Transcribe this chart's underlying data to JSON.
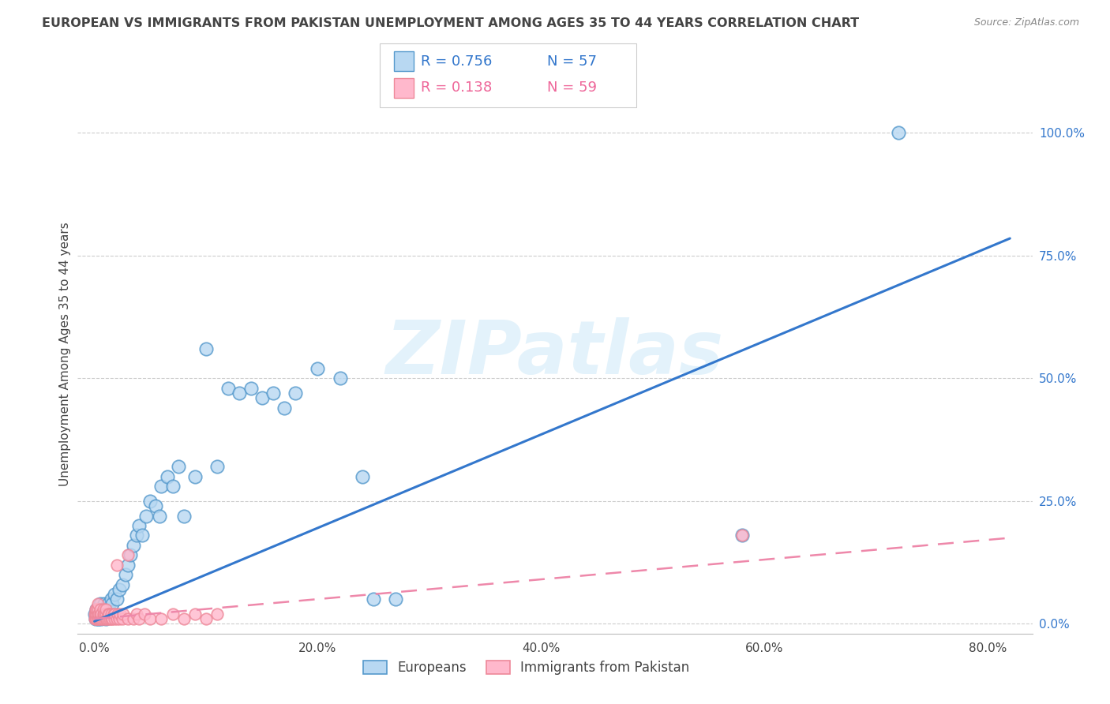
{
  "title": "EUROPEAN VS IMMIGRANTS FROM PAKISTAN UNEMPLOYMENT AMONG AGES 35 TO 44 YEARS CORRELATION CHART",
  "source": "Source: ZipAtlas.com",
  "ylabel": "Unemployment Among Ages 35 to 44 years",
  "xlabel_ticks": [
    "0.0%",
    "20.0%",
    "40.0%",
    "60.0%",
    "80.0%"
  ],
  "xlabel_vals": [
    0.0,
    0.2,
    0.4,
    0.6,
    0.8
  ],
  "ylabel_ticks": [
    "100.0%",
    "75.0%",
    "50.0%",
    "25.0%",
    "0.0%"
  ],
  "ylabel_vals": [
    1.0,
    0.75,
    0.5,
    0.25,
    0.0
  ],
  "xlim": [
    -0.015,
    0.84
  ],
  "ylim": [
    -0.02,
    1.12
  ],
  "legend_eu_R": "R = 0.756",
  "legend_eu_N": "N = 57",
  "legend_pak_R": "R = 0.138",
  "legend_pak_N": "N = 59",
  "european_face": "#b8d8f2",
  "european_edge": "#5599cc",
  "pakistan_face": "#ffb8cc",
  "pakistan_edge": "#ee8899",
  "european_line": "#3377cc",
  "pakistan_line": "#ee88aa",
  "text_dark": "#444444",
  "text_blue": "#3377cc",
  "text_pink": "#ee6699",
  "grid_color": "#cccccc",
  "eu_x": [
    0.0,
    0.001,
    0.002,
    0.003,
    0.003,
    0.004,
    0.004,
    0.005,
    0.005,
    0.006,
    0.007,
    0.008,
    0.009,
    0.01,
    0.01,
    0.011,
    0.012,
    0.013,
    0.015,
    0.016,
    0.018,
    0.02,
    0.022,
    0.025,
    0.028,
    0.03,
    0.032,
    0.035,
    0.038,
    0.04,
    0.043,
    0.046,
    0.05,
    0.055,
    0.058,
    0.06,
    0.065,
    0.07,
    0.075,
    0.08,
    0.09,
    0.1,
    0.11,
    0.12,
    0.13,
    0.14,
    0.15,
    0.16,
    0.17,
    0.18,
    0.2,
    0.22,
    0.24,
    0.25,
    0.27,
    0.58,
    0.72
  ],
  "eu_y": [
    0.02,
    0.01,
    0.03,
    0.01,
    0.02,
    0.01,
    0.03,
    0.02,
    0.04,
    0.01,
    0.03,
    0.02,
    0.04,
    0.01,
    0.03,
    0.02,
    0.04,
    0.03,
    0.05,
    0.04,
    0.06,
    0.05,
    0.07,
    0.08,
    0.1,
    0.12,
    0.14,
    0.16,
    0.18,
    0.2,
    0.18,
    0.22,
    0.25,
    0.24,
    0.22,
    0.28,
    0.3,
    0.28,
    0.32,
    0.22,
    0.3,
    0.56,
    0.32,
    0.48,
    0.47,
    0.48,
    0.46,
    0.47,
    0.44,
    0.47,
    0.52,
    0.5,
    0.3,
    0.05,
    0.05,
    0.18,
    1.0
  ],
  "pak_x": [
    0.0,
    0.0,
    0.001,
    0.001,
    0.001,
    0.002,
    0.002,
    0.002,
    0.003,
    0.003,
    0.003,
    0.003,
    0.004,
    0.004,
    0.005,
    0.005,
    0.005,
    0.006,
    0.006,
    0.007,
    0.008,
    0.008,
    0.009,
    0.009,
    0.01,
    0.01,
    0.01,
    0.011,
    0.012,
    0.012,
    0.013,
    0.014,
    0.015,
    0.015,
    0.016,
    0.017,
    0.018,
    0.018,
    0.02,
    0.021,
    0.022,
    0.023,
    0.025,
    0.026,
    0.03,
    0.03,
    0.035,
    0.038,
    0.04,
    0.045,
    0.05,
    0.06,
    0.07,
    0.08,
    0.09,
    0.1,
    0.11,
    0.58,
    0.02
  ],
  "pak_y": [
    0.01,
    0.02,
    0.01,
    0.02,
    0.03,
    0.01,
    0.02,
    0.03,
    0.01,
    0.02,
    0.03,
    0.04,
    0.01,
    0.02,
    0.01,
    0.02,
    0.03,
    0.01,
    0.02,
    0.01,
    0.02,
    0.03,
    0.01,
    0.02,
    0.01,
    0.02,
    0.03,
    0.01,
    0.01,
    0.02,
    0.02,
    0.01,
    0.01,
    0.02,
    0.01,
    0.02,
    0.01,
    0.02,
    0.01,
    0.02,
    0.01,
    0.02,
    0.01,
    0.02,
    0.01,
    0.14,
    0.01,
    0.02,
    0.01,
    0.02,
    0.01,
    0.01,
    0.02,
    0.01,
    0.02,
    0.01,
    0.02,
    0.18,
    0.12
  ],
  "eu_line_x": [
    0.0,
    0.82
  ],
  "eu_line_y": [
    0.005,
    0.785
  ],
  "pak_line_x": [
    0.0,
    0.82
  ],
  "pak_line_y": [
    0.01,
    0.175
  ]
}
